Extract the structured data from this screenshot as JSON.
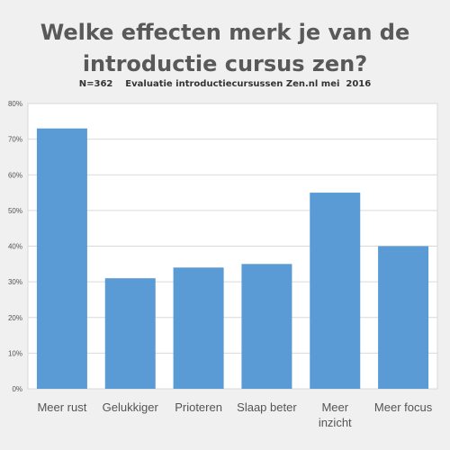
{
  "chart_data": {
    "type": "bar",
    "title_lines": [
      "Welke effecten merk je van de",
      "introductie cursus zen?"
    ],
    "subtitle": "N=362    Evaluatie introductiecursussen Zen.nl mei  2016",
    "categories": [
      "Meer rust",
      "Gelukkiger",
      "Prioteren",
      "Slaap beter",
      "Meer inzicht",
      "Meer focus"
    ],
    "category_lines": [
      [
        "Meer rust"
      ],
      [
        "Gelukkiger"
      ],
      [
        "Prioteren"
      ],
      [
        "Slaap beter"
      ],
      [
        "Meer",
        "inzicht"
      ],
      [
        "Meer focus"
      ]
    ],
    "values": [
      73,
      31,
      34,
      35,
      55,
      40
    ],
    "ylim": [
      0,
      80
    ],
    "yticks": [
      0,
      10,
      20,
      30,
      40,
      50,
      60,
      70,
      80
    ],
    "ytick_labels": [
      "0%",
      "10%",
      "20%",
      "30%",
      "40%",
      "50%",
      "60%",
      "70%",
      "80%"
    ],
    "xlabel": "",
    "ylabel": "",
    "grid": true,
    "bar_color": "#5b9bd5",
    "grid_color": "#d9d9d9",
    "plot_background": "#ffffff"
  }
}
